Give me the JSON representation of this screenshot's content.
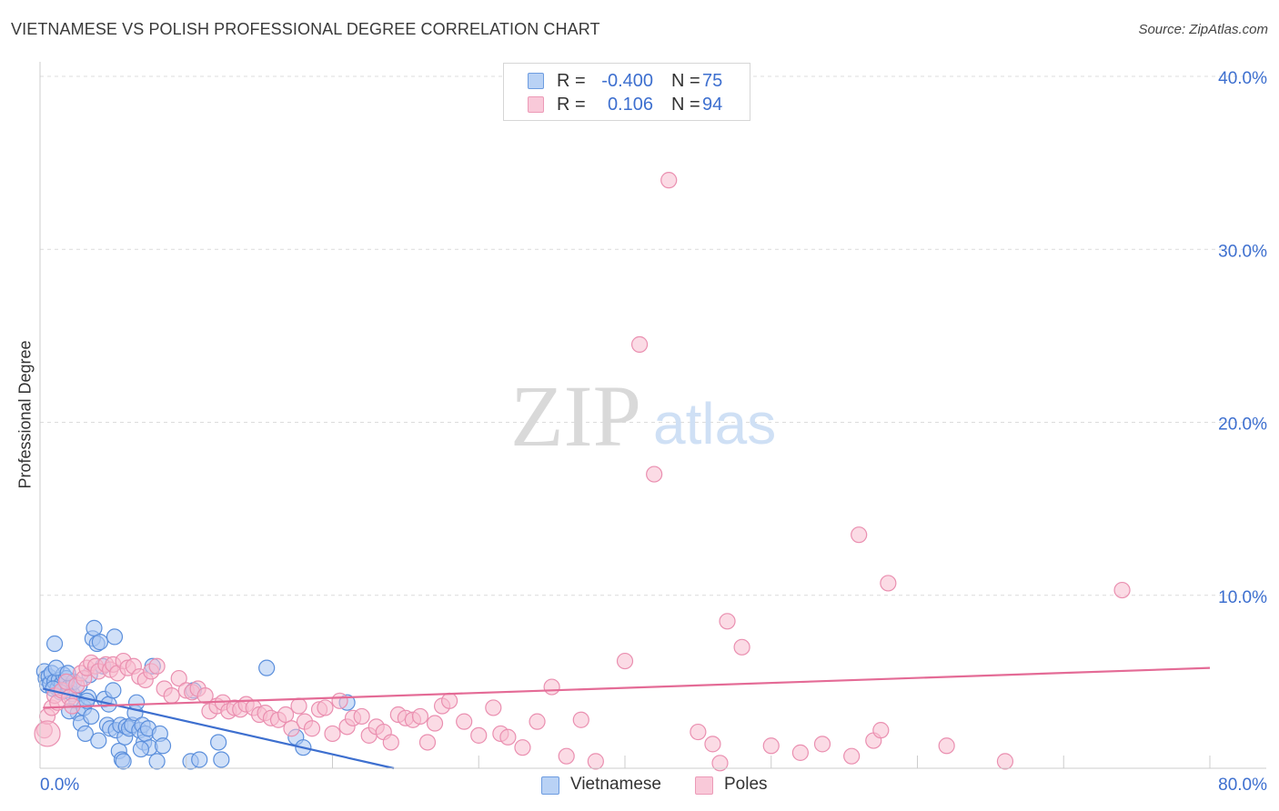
{
  "title": "VIETNAMESE VS POLISH PROFESSIONAL DEGREE CORRELATION CHART",
  "source": "Source: ZipAtlas.com",
  "watermark": {
    "zip": "ZIP",
    "atlas": "atlas"
  },
  "colors": {
    "blue": "#3d6fcf",
    "blue_fill": "#a9c6f2",
    "blue_stroke": "#5b8fdc",
    "pink": "#e46b96",
    "pink_fill": "#f7bdd0",
    "pink_stroke": "#ea8fb0",
    "grid": "#dcdcdc",
    "axis_text": "#3d6fcf"
  },
  "legend": {
    "rows": [
      {
        "r_label": "R =",
        "r_value": "-0.400",
        "n_label": "N =",
        "n_value": "75"
      },
      {
        "r_label": "R =",
        "r_value": "0.106",
        "n_label": "N =",
        "n_value": "94"
      }
    ]
  },
  "bottom_legend": {
    "vietnamese": "Vietnamese",
    "poles": "Poles"
  },
  "chart_data": {
    "type": "scatter",
    "title": "VIETNAMESE VS POLISH PROFESSIONAL DEGREE CORRELATION CHART",
    "xlabel": "",
    "ylabel": "Professional Degree",
    "xlim": [
      0,
      80
    ],
    "ylim": [
      0,
      40
    ],
    "x_tick_labels": [
      "0.0%",
      "80.0%"
    ],
    "y_ticks": [
      10,
      20,
      30,
      40
    ],
    "y_tick_labels": [
      "10.0%",
      "20.0%",
      "30.0%",
      "40.0%"
    ],
    "grid": true,
    "series": [
      {
        "name": "Vietnamese",
        "r": -0.4,
        "n": 75,
        "trend": {
          "x0": 0.2,
          "y0": 4.6,
          "x1": 24.2,
          "y1": 0.0
        },
        "points": [
          [
            0.3,
            5.6
          ],
          [
            0.4,
            5.2
          ],
          [
            0.5,
            4.8
          ],
          [
            0.6,
            5.3
          ],
          [
            0.7,
            4.9
          ],
          [
            0.8,
            5.5
          ],
          [
            1.0,
            5.0
          ],
          [
            1.2,
            4.6
          ],
          [
            1.3,
            5.1
          ],
          [
            1.5,
            4.9
          ],
          [
            1.6,
            5.4
          ],
          [
            1.7,
            4.5
          ],
          [
            1.8,
            5.2
          ],
          [
            1.0,
            7.2
          ],
          [
            1.1,
            5.8
          ],
          [
            2.0,
            4.7
          ],
          [
            2.2,
            4.3
          ],
          [
            2.3,
            5.0
          ],
          [
            2.5,
            3.9
          ],
          [
            2.6,
            3.2
          ],
          [
            2.8,
            2.6
          ],
          [
            3.0,
            3.5
          ],
          [
            3.1,
            2.0
          ],
          [
            3.3,
            4.1
          ],
          [
            3.5,
            3.0
          ],
          [
            3.4,
            5.4
          ],
          [
            3.6,
            7.5
          ],
          [
            3.7,
            8.1
          ],
          [
            3.9,
            7.2
          ],
          [
            4.1,
            7.3
          ],
          [
            4.3,
            5.9
          ],
          [
            4.4,
            4.0
          ],
          [
            4.6,
            2.5
          ],
          [
            4.7,
            3.7
          ],
          [
            4.8,
            2.3
          ],
          [
            5.0,
            4.5
          ],
          [
            5.1,
            7.6
          ],
          [
            5.2,
            2.2
          ],
          [
            5.4,
            1.0
          ],
          [
            5.5,
            2.5
          ],
          [
            5.6,
            0.5
          ],
          [
            5.7,
            0.4
          ],
          [
            5.8,
            1.8
          ],
          [
            5.9,
            2.4
          ],
          [
            6.1,
            2.3
          ],
          [
            6.3,
            2.5
          ],
          [
            6.5,
            3.2
          ],
          [
            6.6,
            3.8
          ],
          [
            6.8,
            2.2
          ],
          [
            7.0,
            2.5
          ],
          [
            7.1,
            1.5
          ],
          [
            7.2,
            2.0
          ],
          [
            7.4,
            2.3
          ],
          [
            7.5,
            1.2
          ],
          [
            7.7,
            5.9
          ],
          [
            8.0,
            0.4
          ],
          [
            8.2,
            2.0
          ],
          [
            8.4,
            1.3
          ],
          [
            10.3,
            0.4
          ],
          [
            10.5,
            4.5
          ],
          [
            10.9,
            0.5
          ],
          [
            12.2,
            1.5
          ],
          [
            12.4,
            0.5
          ],
          [
            15.5,
            5.8
          ],
          [
            17.5,
            1.8
          ],
          [
            18.0,
            1.2
          ],
          [
            21.0,
            3.8
          ],
          [
            2.0,
            3.3
          ],
          [
            1.4,
            4.4
          ],
          [
            2.7,
            4.8
          ],
          [
            3.2,
            3.9
          ],
          [
            0.9,
            4.6
          ],
          [
            1.9,
            5.5
          ],
          [
            4.0,
            1.6
          ],
          [
            6.9,
            1.1
          ]
        ]
      },
      {
        "name": "Poles",
        "r": 0.106,
        "n": 94,
        "trend": {
          "x0": 0.2,
          "y0": 3.5,
          "x1": 80.0,
          "y1": 5.8
        },
        "points": [
          [
            0.3,
            2.2
          ],
          [
            0.5,
            3.0
          ],
          [
            0.8,
            3.5
          ],
          [
            1.0,
            4.2
          ],
          [
            1.2,
            3.8
          ],
          [
            1.5,
            4.5
          ],
          [
            1.8,
            5.0
          ],
          [
            2.0,
            4.1
          ],
          [
            2.2,
            3.6
          ],
          [
            2.5,
            4.8
          ],
          [
            2.8,
            5.5
          ],
          [
            3.0,
            5.2
          ],
          [
            3.2,
            5.8
          ],
          [
            3.5,
            6.1
          ],
          [
            3.8,
            5.9
          ],
          [
            4.0,
            5.6
          ],
          [
            4.5,
            6.0
          ],
          [
            4.8,
            5.7
          ],
          [
            5.0,
            6.0
          ],
          [
            5.3,
            5.5
          ],
          [
            5.7,
            6.2
          ],
          [
            6.0,
            5.8
          ],
          [
            6.4,
            5.9
          ],
          [
            6.8,
            5.3
          ],
          [
            7.2,
            5.1
          ],
          [
            7.6,
            5.6
          ],
          [
            8.0,
            5.9
          ],
          [
            8.5,
            4.6
          ],
          [
            9.0,
            4.2
          ],
          [
            9.5,
            5.2
          ],
          [
            10.0,
            4.5
          ],
          [
            10.4,
            4.4
          ],
          [
            10.8,
            4.6
          ],
          [
            11.3,
            4.2
          ],
          [
            11.6,
            3.3
          ],
          [
            12.1,
            3.6
          ],
          [
            12.5,
            3.8
          ],
          [
            12.9,
            3.3
          ],
          [
            13.3,
            3.5
          ],
          [
            13.7,
            3.4
          ],
          [
            14.1,
            3.7
          ],
          [
            14.6,
            3.5
          ],
          [
            15.0,
            3.1
          ],
          [
            15.4,
            3.2
          ],
          [
            15.8,
            2.9
          ],
          [
            16.3,
            2.8
          ],
          [
            16.8,
            3.1
          ],
          [
            17.2,
            2.3
          ],
          [
            17.7,
            3.6
          ],
          [
            18.1,
            2.7
          ],
          [
            18.6,
            2.3
          ],
          [
            19.1,
            3.4
          ],
          [
            19.5,
            3.5
          ],
          [
            20.0,
            2.0
          ],
          [
            20.5,
            3.9
          ],
          [
            21.0,
            2.4
          ],
          [
            21.4,
            2.9
          ],
          [
            22.0,
            3.0
          ],
          [
            22.5,
            1.9
          ],
          [
            23.0,
            2.4
          ],
          [
            23.5,
            2.1
          ],
          [
            24.0,
            1.5
          ],
          [
            24.5,
            3.1
          ],
          [
            25.0,
            2.9
          ],
          [
            25.5,
            2.8
          ],
          [
            26.0,
            3.0
          ],
          [
            26.5,
            1.5
          ],
          [
            27.0,
            2.6
          ],
          [
            27.5,
            3.6
          ],
          [
            28.0,
            3.9
          ],
          [
            29.0,
            2.7
          ],
          [
            30.0,
            1.9
          ],
          [
            31.0,
            3.5
          ],
          [
            31.5,
            2.0
          ],
          [
            32.0,
            1.8
          ],
          [
            33.0,
            1.2
          ],
          [
            34.0,
            2.7
          ],
          [
            35.0,
            4.7
          ],
          [
            36.0,
            0.7
          ],
          [
            37.0,
            2.8
          ],
          [
            38.0,
            0.4
          ],
          [
            40.0,
            6.2
          ],
          [
            41.0,
            24.5
          ],
          [
            42.0,
            17.0
          ],
          [
            43.0,
            34.0
          ],
          [
            45.0,
            2.1
          ],
          [
            46.0,
            1.4
          ],
          [
            46.5,
            0.3
          ],
          [
            47.0,
            8.5
          ],
          [
            48.0,
            7.0
          ],
          [
            50.0,
            1.3
          ],
          [
            52.0,
            0.9
          ],
          [
            56.0,
            13.5
          ],
          [
            58.0,
            10.7
          ]
        ]
      }
    ],
    "extra_pink_points": [
      [
        53.5,
        1.4
      ],
      [
        55.5,
        0.7
      ],
      [
        57.0,
        1.6
      ],
      [
        57.5,
        2.2
      ],
      [
        62.0,
        1.3
      ],
      [
        66.0,
        0.4
      ],
      [
        74.0,
        10.3
      ]
    ]
  }
}
